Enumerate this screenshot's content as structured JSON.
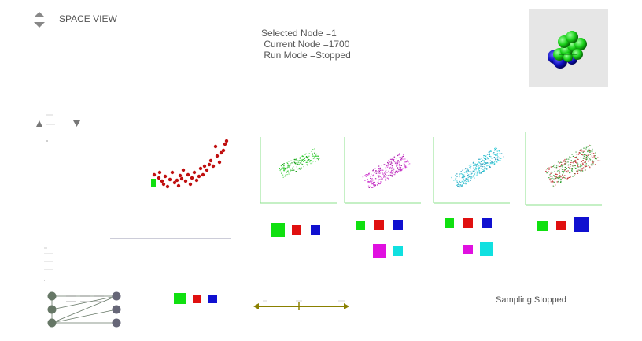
{
  "header": {
    "view_title": "SPACE VIEW",
    "selected_node": "Selected Node =1",
    "current_node": " Current Node =1700",
    "run_mode": " Run Mode =Stopped"
  },
  "icons": {
    "view_toggle": "up-down-arrows-icon",
    "small_up": "triangle-up-icon",
    "small_down": "triangle-down-icon"
  },
  "footer": {
    "sampling_status": "Sampling Stopped"
  },
  "colors": {
    "scatter_red": "#c01010",
    "green": "#10e010",
    "red": "#e01010",
    "blue": "#1010d0",
    "magenta": "#e010e0",
    "cyan": "#10e0e0",
    "slider": "#8a8000",
    "graph_node": "#667766",
    "graph_node_right": "#666677"
  },
  "chart_data": {
    "type": "scatter",
    "series": [
      {
        "x": [
          195,
          196,
          202,
          203,
          206,
          208,
          210,
          213,
          216,
          219,
          222,
          225,
          227,
          229,
          231,
          233,
          236,
          239,
          242,
          244,
          247,
          250,
          253,
          255,
          258,
          260,
          263,
          266,
          268,
          271,
          274,
          276,
          279,
          281,
          284,
          286,
          288
        ],
        "y": [
          232,
          222,
          226,
          219,
          230,
          234,
          224,
          237,
          228,
          219,
          232,
          229,
          236,
          223,
          227,
          216,
          230,
          222,
          234,
          226,
          219,
          229,
          224,
          214,
          222,
          211,
          216,
          209,
          204,
          211,
          186,
          198,
          206,
          194,
          191,
          183,
          179
        ]
      }
    ]
  }
}
